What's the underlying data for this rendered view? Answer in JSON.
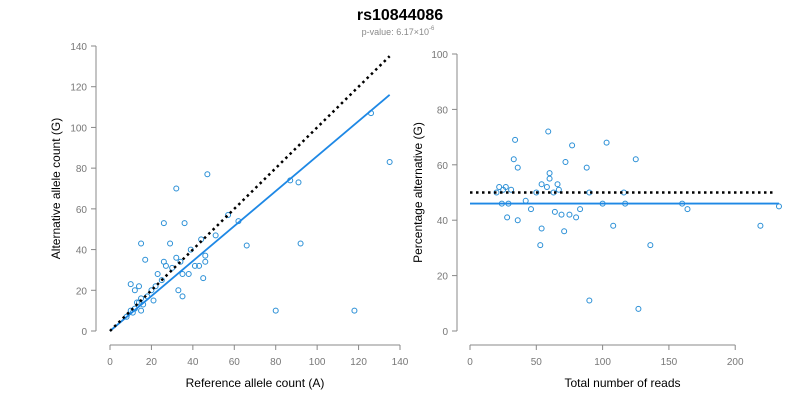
{
  "header": {
    "title": "rs10844086",
    "subtitle_prefix": "p-value: 6.17×10",
    "subtitle_exponent": "-6"
  },
  "colors": {
    "points": "#2a8fd6",
    "fit_line": "#1e88e5",
    "reference_line": "#000000",
    "axis": "#888888"
  },
  "chart_data": [
    {
      "type": "scatter",
      "title": "",
      "xlabel": "Reference allele count (A)",
      "ylabel": "Alternative allele count (G)",
      "xlim": [
        0,
        140
      ],
      "ylim": [
        0,
        140
      ],
      "xticks": [
        0,
        20,
        40,
        60,
        80,
        100,
        120,
        140
      ],
      "yticks": [
        0,
        20,
        40,
        60,
        80,
        100,
        120,
        140
      ],
      "grid": false,
      "points": [
        {
          "x": 8,
          "y": 7
        },
        {
          "x": 10,
          "y": 10
        },
        {
          "x": 10,
          "y": 23
        },
        {
          "x": 11,
          "y": 9
        },
        {
          "x": 12,
          "y": 11
        },
        {
          "x": 12,
          "y": 20
        },
        {
          "x": 13,
          "y": 14
        },
        {
          "x": 14,
          "y": 14
        },
        {
          "x": 14,
          "y": 22
        },
        {
          "x": 15,
          "y": 16
        },
        {
          "x": 15,
          "y": 43
        },
        {
          "x": 15,
          "y": 10
        },
        {
          "x": 16,
          "y": 13
        },
        {
          "x": 17,
          "y": 35
        },
        {
          "x": 18,
          "y": 17
        },
        {
          "x": 20,
          "y": 20
        },
        {
          "x": 21,
          "y": 15
        },
        {
          "x": 22,
          "y": 22
        },
        {
          "x": 23,
          "y": 28
        },
        {
          "x": 25,
          "y": 25
        },
        {
          "x": 26,
          "y": 53
        },
        {
          "x": 26,
          "y": 34
        },
        {
          "x": 27,
          "y": 32
        },
        {
          "x": 29,
          "y": 43
        },
        {
          "x": 30,
          "y": 31
        },
        {
          "x": 32,
          "y": 70
        },
        {
          "x": 32,
          "y": 36
        },
        {
          "x": 33,
          "y": 20
        },
        {
          "x": 34,
          "y": 34
        },
        {
          "x": 35,
          "y": 28
        },
        {
          "x": 35,
          "y": 17
        },
        {
          "x": 36,
          "y": 53
        },
        {
          "x": 38,
          "y": 28
        },
        {
          "x": 39,
          "y": 40
        },
        {
          "x": 41,
          "y": 32
        },
        {
          "x": 43,
          "y": 32
        },
        {
          "x": 44,
          "y": 45
        },
        {
          "x": 45,
          "y": 26
        },
        {
          "x": 46,
          "y": 34
        },
        {
          "x": 46,
          "y": 37
        },
        {
          "x": 47,
          "y": 77
        },
        {
          "x": 51,
          "y": 47
        },
        {
          "x": 57,
          "y": 57
        },
        {
          "x": 62,
          "y": 54
        },
        {
          "x": 66,
          "y": 42
        },
        {
          "x": 80,
          "y": 10
        },
        {
          "x": 87,
          "y": 74
        },
        {
          "x": 91,
          "y": 73
        },
        {
          "x": 92,
          "y": 43
        },
        {
          "x": 118,
          "y": 10
        },
        {
          "x": 126,
          "y": 107
        },
        {
          "x": 135,
          "y": 83
        }
      ],
      "fit_line": {
        "x": [
          0,
          135
        ],
        "y": [
          0,
          116
        ]
      },
      "reference_line": {
        "x": [
          0,
          135
        ],
        "y": [
          0,
          135
        ]
      }
    },
    {
      "type": "scatter",
      "title": "",
      "xlabel": "Total number of reads",
      "ylabel": "Percentage alternative (G)",
      "xlim": [
        0,
        230
      ],
      "ylim": [
        0,
        100
      ],
      "xticks": [
        0,
        50,
        100,
        150,
        200
      ],
      "yticks": [
        0,
        20,
        40,
        60,
        80,
        100
      ],
      "grid": false,
      "points": [
        {
          "x": 20,
          "y": 50
        },
        {
          "x": 22,
          "y": 52
        },
        {
          "x": 24,
          "y": 46
        },
        {
          "x": 25,
          "y": 51
        },
        {
          "x": 27,
          "y": 52
        },
        {
          "x": 28,
          "y": 41
        },
        {
          "x": 29,
          "y": 46
        },
        {
          "x": 31,
          "y": 51
        },
        {
          "x": 33,
          "y": 62
        },
        {
          "x": 34,
          "y": 69
        },
        {
          "x": 36,
          "y": 40
        },
        {
          "x": 36,
          "y": 59
        },
        {
          "x": 42,
          "y": 47
        },
        {
          "x": 46,
          "y": 44
        },
        {
          "x": 50,
          "y": 50
        },
        {
          "x": 53,
          "y": 31
        },
        {
          "x": 54,
          "y": 37
        },
        {
          "x": 54,
          "y": 53
        },
        {
          "x": 58,
          "y": 52
        },
        {
          "x": 59,
          "y": 72
        },
        {
          "x": 60,
          "y": 57
        },
        {
          "x": 60,
          "y": 55
        },
        {
          "x": 63,
          "y": 50
        },
        {
          "x": 64,
          "y": 43
        },
        {
          "x": 66,
          "y": 53
        },
        {
          "x": 67,
          "y": 51
        },
        {
          "x": 69,
          "y": 42
        },
        {
          "x": 71,
          "y": 36
        },
        {
          "x": 72,
          "y": 61
        },
        {
          "x": 75,
          "y": 42
        },
        {
          "x": 77,
          "y": 67
        },
        {
          "x": 80,
          "y": 41
        },
        {
          "x": 83,
          "y": 44
        },
        {
          "x": 88,
          "y": 59
        },
        {
          "x": 90,
          "y": 50
        },
        {
          "x": 90,
          "y": 11
        },
        {
          "x": 100,
          "y": 46
        },
        {
          "x": 103,
          "y": 68
        },
        {
          "x": 108,
          "y": 38
        },
        {
          "x": 116,
          "y": 50
        },
        {
          "x": 117,
          "y": 46
        },
        {
          "x": 125,
          "y": 62
        },
        {
          "x": 127,
          "y": 8
        },
        {
          "x": 136,
          "y": 31
        },
        {
          "x": 160,
          "y": 46
        },
        {
          "x": 164,
          "y": 44
        },
        {
          "x": 219,
          "y": 38
        },
        {
          "x": 233,
          "y": 45
        }
      ],
      "fit_line": {
        "x": [
          0,
          233
        ],
        "y": [
          46,
          46
        ]
      },
      "reference_line": {
        "x": [
          0,
          230
        ],
        "y": [
          50,
          50
        ]
      }
    }
  ]
}
